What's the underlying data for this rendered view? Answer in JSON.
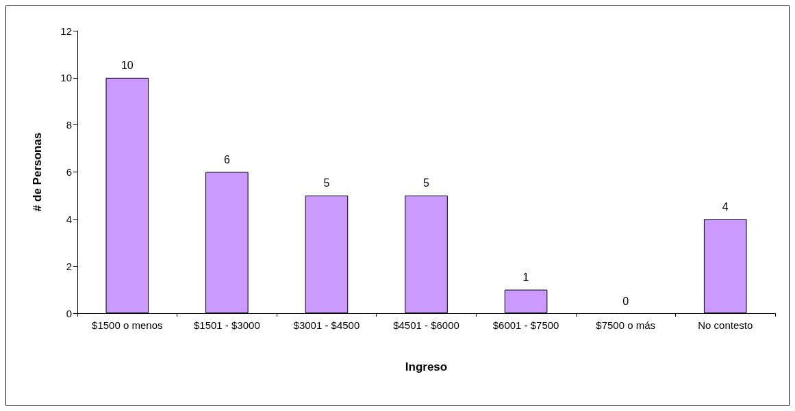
{
  "chart_data": {
    "type": "bar",
    "xlabel": "Ingreso",
    "ylabel": "# de Personas",
    "categories": [
      "$1500 o menos",
      "$1501 - $3000",
      "$3001 - $4500",
      "$4501 - $6000",
      "$6001 - $7500",
      "$7500 o más",
      "No contesto"
    ],
    "values": [
      10,
      6,
      5,
      5,
      1,
      0,
      4
    ],
    "color": "#cc99ff",
    "ylim": [
      0,
      12
    ],
    "yticks": [
      0,
      2,
      4,
      6,
      8,
      10,
      12
    ],
    "grid": false,
    "data_labels": true
  }
}
